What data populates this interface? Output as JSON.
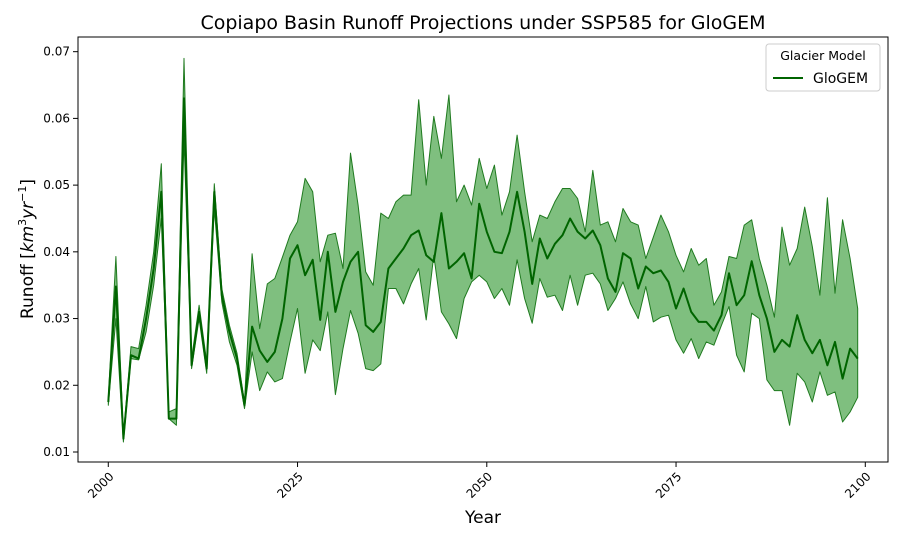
{
  "chart_data": {
    "type": "line",
    "title": "Copiapo Basin Runoff Projections under SSP585 for GloGEM",
    "xlabel": "Year",
    "ylabel_prefix": "Runoff [",
    "ylabel_unit": "km",
    "ylabel_sup1": "3",
    "ylabel_unit2": "yr",
    "ylabel_sup2": "−1",
    "ylabel_suffix": "]",
    "xlim": [
      1996,
      2103
    ],
    "ylim": [
      0.0085,
      0.0722
    ],
    "x_ticks": [
      2000,
      2025,
      2050,
      2075,
      2100
    ],
    "y_ticks": [
      0.01,
      0.02,
      0.03,
      0.04,
      0.05,
      0.06,
      0.07
    ],
    "y_tick_labels": [
      "0.01",
      "0.02",
      "0.03",
      "0.04",
      "0.05",
      "0.06",
      "0.07"
    ],
    "grid": false,
    "legend": {
      "title": "Glacier Model",
      "placement": "top-right",
      "entries": [
        "GloGEM"
      ]
    },
    "colors": {
      "line": "#006400",
      "band_fill": "#008000",
      "band_edge": "#1f7a1f"
    },
    "series": [
      {
        "name": "GloGEM",
        "x": [
          2000,
          2001,
          2002,
          2003,
          2004,
          2005,
          2006,
          2007,
          2008,
          2009,
          2010,
          2011,
          2012,
          2013,
          2014,
          2015,
          2016,
          2017,
          2018,
          2019,
          2020,
          2021,
          2022,
          2023,
          2024,
          2025,
          2026,
          2027,
          2028,
          2029,
          2030,
          2031,
          2032,
          2033,
          2034,
          2035,
          2036,
          2037,
          2038,
          2039,
          2040,
          2041,
          2042,
          2043,
          2044,
          2045,
          2046,
          2047,
          2048,
          2049,
          2050,
          2051,
          2052,
          2053,
          2054,
          2055,
          2056,
          2057,
          2058,
          2059,
          2060,
          2061,
          2062,
          2063,
          2064,
          2065,
          2066,
          2067,
          2068,
          2069,
          2070,
          2071,
          2072,
          2073,
          2074,
          2075,
          2076,
          2077,
          2078,
          2079,
          2080,
          2081,
          2082,
          2083,
          2084,
          2085,
          2086,
          2087,
          2088,
          2089,
          2090,
          2091,
          2092,
          2093,
          2094,
          2095,
          2096,
          2097,
          2098,
          2099
        ],
        "mean": [
          0.0175,
          0.0348,
          0.012,
          0.0245,
          0.024,
          0.03,
          0.0375,
          0.049,
          0.015,
          0.015,
          0.063,
          0.023,
          0.031,
          0.0225,
          0.049,
          0.0335,
          0.028,
          0.024,
          0.017,
          0.0288,
          0.0252,
          0.0235,
          0.025,
          0.03,
          0.039,
          0.041,
          0.0365,
          0.0388,
          0.0298,
          0.04,
          0.031,
          0.0355,
          0.0385,
          0.04,
          0.029,
          0.028,
          0.0295,
          0.0375,
          0.039,
          0.0405,
          0.0425,
          0.0432,
          0.0395,
          0.0385,
          0.0458,
          0.0375,
          0.0385,
          0.0398,
          0.036,
          0.0472,
          0.043,
          0.04,
          0.0398,
          0.043,
          0.049,
          0.043,
          0.0352,
          0.042,
          0.039,
          0.0412,
          0.0425,
          0.045,
          0.043,
          0.042,
          0.0432,
          0.041,
          0.036,
          0.034,
          0.0398,
          0.039,
          0.0345,
          0.0378,
          0.0368,
          0.0372,
          0.0355,
          0.0315,
          0.0345,
          0.031,
          0.0295,
          0.0295,
          0.0282,
          0.0305,
          0.0368,
          0.032,
          0.0335,
          0.0386,
          0.0335,
          0.03,
          0.025,
          0.0268,
          0.0258,
          0.0305,
          0.0268,
          0.0248,
          0.0268,
          0.023,
          0.0265,
          0.021,
          0.0255,
          0.024
        ],
        "upper": [
          0.018,
          0.0393,
          0.0125,
          0.0258,
          0.0255,
          0.032,
          0.04,
          0.0532,
          0.016,
          0.0165,
          0.069,
          0.024,
          0.032,
          0.0235,
          0.0502,
          0.0345,
          0.029,
          0.0248,
          0.0175,
          0.0397,
          0.0285,
          0.0352,
          0.036,
          0.0392,
          0.0425,
          0.0445,
          0.051,
          0.049,
          0.0385,
          0.0425,
          0.0428,
          0.0375,
          0.0548,
          0.047,
          0.037,
          0.035,
          0.0458,
          0.045,
          0.0475,
          0.0485,
          0.0485,
          0.0628,
          0.05,
          0.0603,
          0.054,
          0.0635,
          0.0475,
          0.05,
          0.047,
          0.054,
          0.0495,
          0.053,
          0.0455,
          0.049,
          0.0575,
          0.049,
          0.0415,
          0.0455,
          0.045,
          0.0475,
          0.0495,
          0.0495,
          0.048,
          0.043,
          0.0522,
          0.044,
          0.0445,
          0.0415,
          0.0465,
          0.0445,
          0.044,
          0.039,
          0.0422,
          0.0455,
          0.043,
          0.0395,
          0.037,
          0.0405,
          0.038,
          0.039,
          0.032,
          0.034,
          0.0393,
          0.039,
          0.044,
          0.0448,
          0.039,
          0.035,
          0.0302,
          0.0437,
          0.038,
          0.0405,
          0.0467,
          0.0408,
          0.0335,
          0.0481,
          0.0338,
          0.0448,
          0.039,
          0.0315
        ],
        "lower": [
          0.017,
          0.03,
          0.0115,
          0.024,
          0.0238,
          0.028,
          0.035,
          0.045,
          0.015,
          0.014,
          0.057,
          0.0225,
          0.03,
          0.0218,
          0.0465,
          0.0325,
          0.0265,
          0.023,
          0.0165,
          0.025,
          0.0192,
          0.022,
          0.0205,
          0.021,
          0.0265,
          0.0315,
          0.0218,
          0.0268,
          0.0252,
          0.031,
          0.0186,
          0.0255,
          0.0312,
          0.0278,
          0.0225,
          0.0222,
          0.0232,
          0.0345,
          0.0345,
          0.0322,
          0.0352,
          0.0375,
          0.0298,
          0.0395,
          0.031,
          0.0292,
          0.027,
          0.033,
          0.0355,
          0.0365,
          0.0355,
          0.033,
          0.0345,
          0.032,
          0.0388,
          0.033,
          0.0293,
          0.036,
          0.0332,
          0.0335,
          0.0312,
          0.0365,
          0.032,
          0.0365,
          0.0368,
          0.0352,
          0.0312,
          0.033,
          0.0355,
          0.0322,
          0.03,
          0.0348,
          0.0295,
          0.0302,
          0.0305,
          0.0268,
          0.0248,
          0.027,
          0.024,
          0.0265,
          0.026,
          0.029,
          0.0318,
          0.0245,
          0.022,
          0.0308,
          0.03,
          0.0208,
          0.0192,
          0.0192,
          0.014,
          0.0218,
          0.0205,
          0.0175,
          0.022,
          0.0185,
          0.019,
          0.0145,
          0.016,
          0.0182
        ]
      }
    ]
  }
}
